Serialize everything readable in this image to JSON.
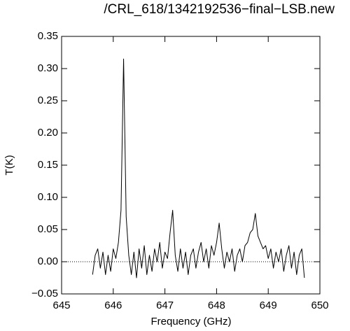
{
  "chart_data": {
    "type": "line",
    "title": "/CRL_618/1342192536−final−LSB.new",
    "x_label": "Frequency (GHz)",
    "y_label": "T(K)",
    "xlim": [
      645,
      650
    ],
    "ylim": [
      -0.05,
      0.35
    ],
    "xticks": [
      645,
      646,
      647,
      648,
      649,
      650
    ],
    "yticks": [
      {
        "value": -0.05,
        "label": "−0.05"
      },
      {
        "value": 0,
        "label": "0.00"
      },
      0.05,
      {
        "value": 0.1,
        "label": "0.10"
      },
      0.15,
      {
        "value": 0.2,
        "label": "0.20"
      },
      0.25,
      {
        "value": 0.3,
        "label": "0.30"
      },
      0.35
    ],
    "zero_line": true,
    "series": [
      {
        "color": "#000000",
        "x": [
          645.6,
          645.65,
          645.7,
          645.75,
          645.8,
          645.85,
          645.9,
          645.95,
          646.0,
          646.05,
          646.1,
          646.15,
          646.2,
          646.25,
          646.3,
          646.35,
          646.4,
          646.45,
          646.5,
          646.55,
          646.6,
          646.65,
          646.7,
          646.75,
          646.8,
          646.85,
          646.9,
          646.95,
          647.0,
          647.05,
          647.1,
          647.15,
          647.2,
          647.25,
          647.3,
          647.35,
          647.4,
          647.45,
          647.5,
          647.55,
          647.6,
          647.65,
          647.7,
          647.75,
          647.8,
          647.85,
          647.9,
          647.95,
          648.0,
          648.05,
          648.1,
          648.15,
          648.2,
          648.25,
          648.3,
          648.35,
          648.4,
          648.45,
          648.5,
          648.55,
          648.6,
          648.65,
          648.7,
          648.75,
          648.8,
          648.85,
          648.9,
          648.95,
          649.0,
          649.05,
          649.1,
          649.15,
          649.2,
          649.25,
          649.3,
          649.35,
          649.4,
          649.45,
          649.5,
          649.55,
          649.6,
          649.65,
          649.7
        ],
        "values": [
          -0.02,
          0.01,
          0.02,
          -0.01,
          0.015,
          -0.02,
          0.01,
          -0.015,
          0.02,
          0.005,
          0.03,
          0.08,
          0.315,
          0.07,
          0.01,
          -0.02,
          0.015,
          -0.025,
          0.02,
          -0.01,
          0.025,
          -0.02,
          0.01,
          -0.015,
          0.02,
          0.0,
          0.03,
          -0.01,
          0.015,
          0.005,
          0.045,
          0.08,
          0.01,
          -0.015,
          0.02,
          -0.01,
          0.015,
          -0.02,
          0.01,
          0.02,
          -0.01,
          0.015,
          0.03,
          0.0,
          0.02,
          -0.01,
          0.025,
          0.01,
          0.03,
          0.06,
          0.02,
          -0.01,
          0.015,
          0.0,
          0.02,
          -0.015,
          0.01,
          0.02,
          0.0,
          0.025,
          0.03,
          0.045,
          0.05,
          0.075,
          0.04,
          0.03,
          0.02,
          0.025,
          0.005,
          0.02,
          -0.01,
          0.015,
          0.0,
          0.02,
          -0.015,
          0.01,
          0.025,
          -0.01,
          0.015,
          -0.02,
          0.01,
          0.02,
          -0.025
        ]
      }
    ]
  }
}
